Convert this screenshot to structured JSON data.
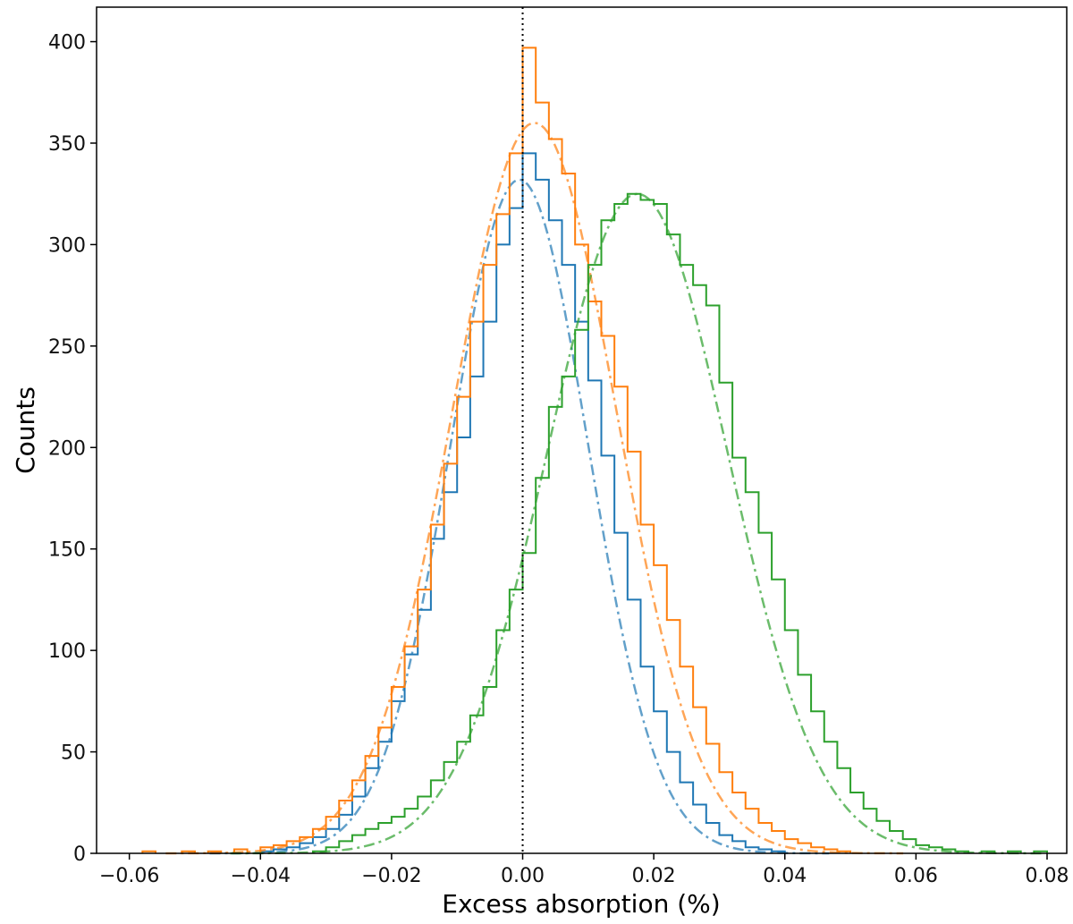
{
  "chart_data": {
    "type": "histogram",
    "xlabel": "Excess absorption (%)",
    "ylabel": "Counts",
    "xlim": [
      -0.065,
      0.083
    ],
    "ylim": [
      0,
      417
    ],
    "x_ticks": [
      -0.06,
      -0.04,
      -0.02,
      0.0,
      0.02,
      0.04,
      0.06,
      0.08
    ],
    "x_tick_labels": [
      "−0.06",
      "−0.04",
      "−0.02",
      "0.00",
      "0.02",
      "0.04",
      "0.06",
      "0.08"
    ],
    "y_ticks": [
      0,
      50,
      100,
      150,
      200,
      250,
      300,
      350,
      400
    ],
    "y_tick_labels": [
      "0",
      "50",
      "100",
      "150",
      "200",
      "250",
      "300",
      "350",
      "400"
    ],
    "grid": false,
    "legend": "none",
    "reference_line": {
      "x": 0.0,
      "style": "dotted",
      "color": "#000000"
    },
    "series": [
      {
        "color": "#1f77b4",
        "fit": {
          "amplitude": 332,
          "mean": -0.0005,
          "sigma": 0.0105,
          "style": "dash-dot"
        },
        "bins": [
          [
            -0.04,
            1
          ],
          [
            -0.038,
            2
          ],
          [
            -0.036,
            3
          ],
          [
            -0.034,
            5
          ],
          [
            -0.032,
            8
          ],
          [
            -0.03,
            12
          ],
          [
            -0.028,
            19
          ],
          [
            -0.026,
            28
          ],
          [
            -0.024,
            42
          ],
          [
            -0.022,
            55
          ],
          [
            -0.02,
            75
          ],
          [
            -0.018,
            98
          ],
          [
            -0.016,
            120
          ],
          [
            -0.014,
            155
          ],
          [
            -0.012,
            178
          ],
          [
            -0.01,
            205
          ],
          [
            -0.008,
            235
          ],
          [
            -0.006,
            262
          ],
          [
            -0.004,
            300
          ],
          [
            -0.002,
            318
          ],
          [
            0.0,
            345
          ],
          [
            0.002,
            332
          ],
          [
            0.004,
            312
          ],
          [
            0.006,
            290
          ],
          [
            0.008,
            262
          ],
          [
            0.01,
            233
          ],
          [
            0.012,
            196
          ],
          [
            0.014,
            158
          ],
          [
            0.016,
            125
          ],
          [
            0.018,
            92
          ],
          [
            0.02,
            70
          ],
          [
            0.022,
            50
          ],
          [
            0.024,
            35
          ],
          [
            0.026,
            24
          ],
          [
            0.028,
            15
          ],
          [
            0.03,
            9
          ],
          [
            0.032,
            6
          ],
          [
            0.034,
            3
          ],
          [
            0.036,
            2
          ],
          [
            0.038,
            1
          ]
        ]
      },
      {
        "color": "#ff7f0e",
        "fit": {
          "amplitude": 360,
          "mean": 0.0018,
          "sigma": 0.0125,
          "style": "dash-dot"
        },
        "bins": [
          [
            -0.058,
            1
          ],
          [
            -0.052,
            1
          ],
          [
            -0.048,
            1
          ],
          [
            -0.044,
            2
          ],
          [
            -0.04,
            3
          ],
          [
            -0.038,
            4
          ],
          [
            -0.036,
            6
          ],
          [
            -0.034,
            8
          ],
          [
            -0.032,
            12
          ],
          [
            -0.03,
            18
          ],
          [
            -0.028,
            26
          ],
          [
            -0.026,
            36
          ],
          [
            -0.024,
            48
          ],
          [
            -0.022,
            62
          ],
          [
            -0.02,
            82
          ],
          [
            -0.018,
            102
          ],
          [
            -0.016,
            130
          ],
          [
            -0.014,
            162
          ],
          [
            -0.012,
            192
          ],
          [
            -0.01,
            225
          ],
          [
            -0.008,
            262
          ],
          [
            -0.006,
            290
          ],
          [
            -0.004,
            315
          ],
          [
            -0.002,
            345
          ],
          [
            0.0,
            397
          ],
          [
            0.002,
            370
          ],
          [
            0.004,
            352
          ],
          [
            0.006,
            335
          ],
          [
            0.008,
            300
          ],
          [
            0.01,
            272
          ],
          [
            0.012,
            255
          ],
          [
            0.014,
            230
          ],
          [
            0.016,
            198
          ],
          [
            0.018,
            162
          ],
          [
            0.02,
            142
          ],
          [
            0.022,
            115
          ],
          [
            0.024,
            92
          ],
          [
            0.026,
            72
          ],
          [
            0.028,
            54
          ],
          [
            0.03,
            40
          ],
          [
            0.032,
            30
          ],
          [
            0.034,
            22
          ],
          [
            0.036,
            15
          ],
          [
            0.038,
            11
          ],
          [
            0.04,
            7
          ],
          [
            0.042,
            5
          ],
          [
            0.044,
            3
          ],
          [
            0.046,
            2
          ],
          [
            0.048,
            1
          ]
        ]
      },
      {
        "color": "#2ca02c",
        "fit": {
          "amplitude": 325,
          "mean": 0.0175,
          "sigma": 0.0138,
          "style": "dash-dot"
        },
        "bins": [
          [
            -0.032,
            1
          ],
          [
            -0.03,
            3
          ],
          [
            -0.028,
            6
          ],
          [
            -0.026,
            9
          ],
          [
            -0.024,
            12
          ],
          [
            -0.022,
            15
          ],
          [
            -0.02,
            18
          ],
          [
            -0.018,
            22
          ],
          [
            -0.016,
            28
          ],
          [
            -0.014,
            36
          ],
          [
            -0.012,
            45
          ],
          [
            -0.01,
            55
          ],
          [
            -0.008,
            68
          ],
          [
            -0.006,
            82
          ],
          [
            -0.004,
            110
          ],
          [
            -0.002,
            130
          ],
          [
            0.0,
            148
          ],
          [
            0.002,
            185
          ],
          [
            0.004,
            220
          ],
          [
            0.006,
            235
          ],
          [
            0.008,
            258
          ],
          [
            0.01,
            290
          ],
          [
            0.012,
            312
          ],
          [
            0.014,
            320
          ],
          [
            0.016,
            325
          ],
          [
            0.018,
            322
          ],
          [
            0.02,
            320
          ],
          [
            0.022,
            305
          ],
          [
            0.024,
            290
          ],
          [
            0.026,
            280
          ],
          [
            0.028,
            270
          ],
          [
            0.03,
            232
          ],
          [
            0.032,
            195
          ],
          [
            0.034,
            178
          ],
          [
            0.036,
            158
          ],
          [
            0.038,
            135
          ],
          [
            0.04,
            110
          ],
          [
            0.042,
            88
          ],
          [
            0.044,
            70
          ],
          [
            0.046,
            55
          ],
          [
            0.048,
            42
          ],
          [
            0.05,
            30
          ],
          [
            0.052,
            22
          ],
          [
            0.054,
            16
          ],
          [
            0.056,
            11
          ],
          [
            0.058,
            7
          ],
          [
            0.06,
            4
          ],
          [
            0.062,
            3
          ],
          [
            0.064,
            2
          ],
          [
            0.066,
            1
          ],
          [
            0.07,
            1
          ],
          [
            0.074,
            1
          ],
          [
            0.078,
            1
          ]
        ]
      }
    ]
  }
}
